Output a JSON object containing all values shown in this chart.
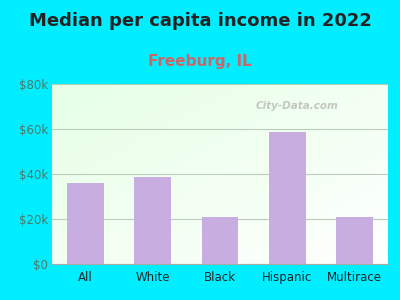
{
  "title": "Median per capita income in 2022",
  "subtitle": "Freeburg, IL",
  "categories": [
    "All",
    "White",
    "Black",
    "Hispanic",
    "Multirace"
  ],
  "values": [
    36000,
    38500,
    21000,
    58500,
    21000
  ],
  "bar_color": "#c8aee0",
  "title_fontsize": 13,
  "title_color": "#222222",
  "subtitle_fontsize": 11,
  "subtitle_color": "#cc6666",
  "tick_label_color": "#4a7a6a",
  "xlabel_color": "#222222",
  "ylim": [
    0,
    80000
  ],
  "yticks": [
    0,
    20000,
    40000,
    60000,
    80000
  ],
  "ytick_labels": [
    "$0",
    "$20k",
    "$40k",
    "$60k",
    "$80k"
  ],
  "background_outer": "#00eeff",
  "watermark": "City-Data.com",
  "grid_color": "#bbccbb"
}
